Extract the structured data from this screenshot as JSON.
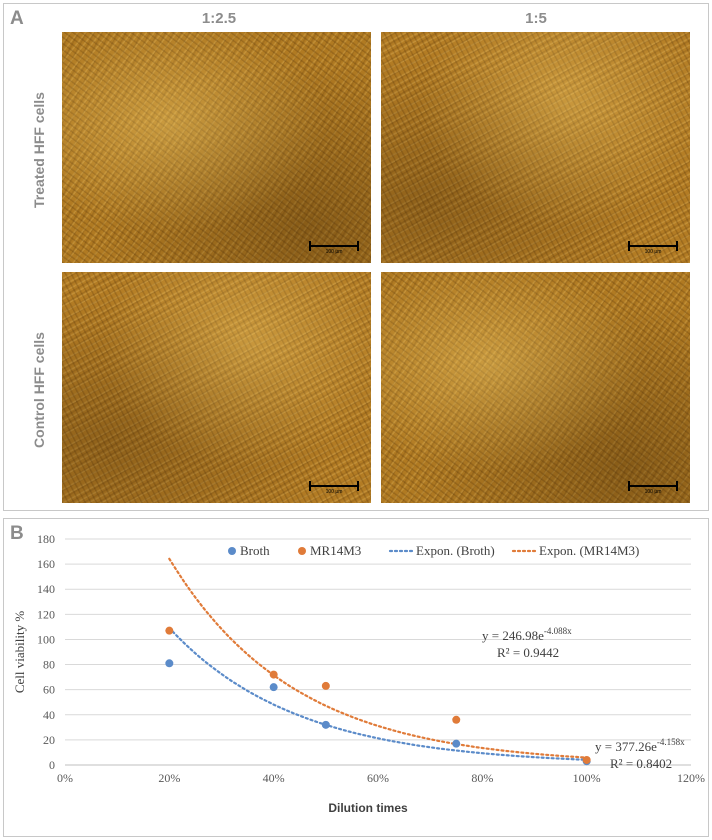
{
  "panel_a": {
    "letter": "A",
    "columns": [
      "1:2.5",
      "1:5"
    ],
    "rows": [
      "Treated HFF cells",
      "Control HFF cells"
    ],
    "scalebar_label": "100 µm"
  },
  "panel_b": {
    "letter": "B",
    "equations": [
      {
        "eq": "y = 246.98e",
        "exp": "-4.088x",
        "r2": "R² = 0.9442"
      },
      {
        "eq": "y = 377.26e",
        "exp": "-4.158x",
        "r2": "R² = 0.8402"
      }
    ]
  },
  "colors": {
    "broth": "#5b8bc9",
    "mr14m3": "#e07b39",
    "grid": "#d9d9d9",
    "axis": "#bfbfbf"
  },
  "chart_data": {
    "type": "scatter",
    "title": "",
    "xlabel": "Dilution times",
    "ylabel": "Cell viability %",
    "xlim": [
      0,
      120
    ],
    "ylim": [
      0,
      180
    ],
    "x_ticks": [
      "0%",
      "20%",
      "40%",
      "60%",
      "80%",
      "100%",
      "120%"
    ],
    "y_ticks": [
      "0",
      "20",
      "40",
      "60",
      "80",
      "100",
      "120",
      "140",
      "160",
      "180"
    ],
    "grid": "horizontal",
    "legend_position": "top",
    "series": [
      {
        "name": "Broth",
        "color": "#5b8bc9",
        "x": [
          20,
          40,
          50,
          75,
          100
        ],
        "y": [
          81,
          62,
          32,
          17,
          3
        ]
      },
      {
        "name": "MR14M3",
        "color": "#e07b39",
        "x": [
          20,
          40,
          50,
          75,
          100
        ],
        "y": [
          107,
          72,
          63,
          36,
          4
        ]
      }
    ],
    "trendlines": [
      {
        "name": "Expon. (Broth)",
        "color": "#5b8bc9",
        "style": "dotted",
        "a": 246.98,
        "b": -4.088,
        "x_range": [
          20,
          100
        ]
      },
      {
        "name": "Expon. (MR14M3)",
        "color": "#e07b39",
        "style": "dotted",
        "a": 377.26,
        "b": -4.158,
        "x_range": [
          20,
          100
        ]
      }
    ],
    "legend": [
      "Broth",
      "MR14M3",
      "Expon. (Broth)",
      "Expon. (MR14M3)"
    ]
  }
}
